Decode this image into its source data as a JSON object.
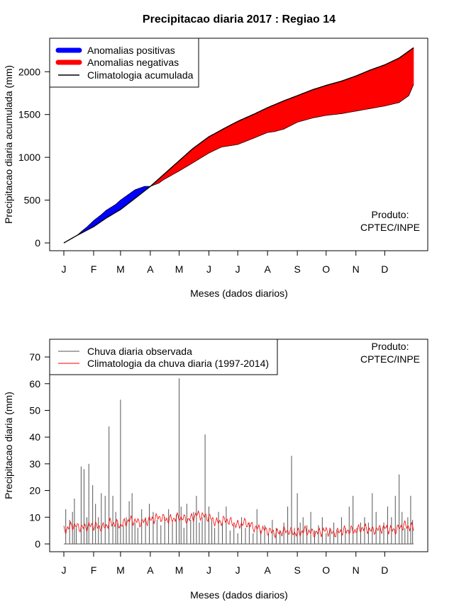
{
  "chart_data": [
    {
      "type": "area",
      "title": "Precipitacao diaria 2017 : Regiao 14",
      "xlabel": "Meses (dados diarios)",
      "ylabel": "Precipitacao diaria acumulada (mm)",
      "xlim": [
        1,
        365
      ],
      "ylim": [
        0,
        2300
      ],
      "yticks": [
        0,
        500,
        1000,
        1500,
        2000
      ],
      "months": [
        "J",
        "F",
        "M",
        "A",
        "M",
        "J",
        "J",
        "A",
        "S",
        "O",
        "N",
        "D"
      ],
      "month_days": [
        1,
        32,
        60,
        91,
        121,
        152,
        182,
        213,
        244,
        274,
        305,
        335
      ],
      "legend": {
        "placement": "top-left",
        "entries": [
          {
            "label": "Anomalias positivas",
            "color": "#0000ff",
            "kind": "thick"
          },
          {
            "label": "Anomalias negativas",
            "color": "#ff0000",
            "kind": "thick"
          },
          {
            "label": "Climatologia acumulada",
            "color": "#000000",
            "kind": "line"
          }
        ]
      },
      "annotation": [
        "Produto:",
        "CPTEC/INPE"
      ],
      "climatology_cumulative": {
        "days": [
          1,
          15,
          32,
          45,
          60,
          75,
          91,
          105,
          121,
          135,
          152,
          170,
          182,
          200,
          213,
          230,
          244,
          260,
          274,
          290,
          305,
          320,
          335,
          350,
          365
        ],
        "values": [
          0,
          90,
          190,
          290,
          390,
          520,
          660,
          800,
          960,
          1100,
          1240,
          1350,
          1420,
          1510,
          1580,
          1660,
          1720,
          1790,
          1840,
          1890,
          1950,
          2020,
          2080,
          2160,
          2280
        ]
      },
      "observed_cumulative": {
        "days": [
          1,
          15,
          20,
          25,
          32,
          40,
          45,
          55,
          60,
          70,
          75,
          85,
          91,
          100,
          105,
          121,
          130,
          152,
          165,
          182,
          200,
          213,
          220,
          230,
          244,
          260,
          274,
          290,
          305,
          320,
          335,
          350,
          360,
          365
        ],
        "values": [
          0,
          90,
          140,
          185,
          260,
          330,
          380,
          450,
          500,
          580,
          620,
          660,
          660,
          700,
          740,
          840,
          900,
          1050,
          1120,
          1150,
          1230,
          1290,
          1300,
          1330,
          1410,
          1460,
          1490,
          1510,
          1540,
          1570,
          1600,
          1640,
          1720,
          1850
        ]
      },
      "colors": {
        "positive": "#0000ff",
        "negative": "#ff0000",
        "line": "#000000"
      }
    },
    {
      "type": "bar",
      "xlabel": "Meses (dados diarios)",
      "ylabel": "Precipitacao diaria (mm)",
      "xlim": [
        1,
        365
      ],
      "ylim": [
        0,
        72
      ],
      "yticks": [
        0,
        10,
        20,
        30,
        40,
        50,
        60,
        70
      ],
      "months": [
        "J",
        "F",
        "M",
        "A",
        "M",
        "J",
        "J",
        "A",
        "S",
        "O",
        "N",
        "D"
      ],
      "month_days": [
        1,
        32,
        60,
        91,
        121,
        152,
        182,
        213,
        244,
        274,
        305,
        335
      ],
      "legend": {
        "placement": "top-left",
        "entries": [
          {
            "label": "Chuva diaria observada",
            "color": "#555555",
            "kind": "line"
          },
          {
            "label": "Climatologia da chuva diaria (1997-2014)",
            "color": "#ff0000",
            "kind": "line"
          }
        ]
      },
      "annotation": [
        "Produto:",
        "CPTEC/INPE"
      ],
      "colors": {
        "observed": "#555555",
        "climatology": "#ff0000"
      },
      "observed_daily": {
        "days": [
          3,
          7,
          10,
          12,
          14,
          19,
          22,
          25,
          27,
          31,
          34,
          37,
          40,
          44,
          48,
          52,
          55,
          57,
          60,
          63,
          66,
          69,
          72,
          75,
          78,
          82,
          86,
          90,
          94,
          98,
          102,
          106,
          110,
          114,
          118,
          121,
          123,
          126,
          129,
          133,
          136,
          139,
          142,
          145,
          148,
          152,
          155,
          158,
          162,
          166,
          170,
          174,
          178,
          182,
          186,
          190,
          194,
          198,
          202,
          206,
          210,
          214,
          218,
          222,
          226,
          230,
          234,
          238,
          241,
          244,
          247,
          250,
          254,
          258,
          262,
          266,
          270,
          274,
          278,
          282,
          286,
          290,
          294,
          298,
          302,
          306,
          310,
          314,
          318,
          322,
          326,
          330,
          334,
          338,
          342,
          346,
          350,
          353,
          356,
          359,
          362,
          364
        ],
        "values": [
          13,
          9,
          12,
          17,
          6,
          29,
          28,
          10,
          30,
          22,
          15,
          10,
          19,
          18,
          44,
          18,
          12,
          8,
          54,
          7,
          10,
          16,
          19,
          8,
          6,
          13,
          10,
          15,
          12,
          9,
          7,
          10,
          13,
          8,
          11,
          62,
          14,
          6,
          15,
          9,
          12,
          18,
          8,
          10,
          41,
          14,
          9,
          6,
          12,
          8,
          14,
          5,
          7,
          4,
          10,
          6,
          8,
          4,
          13,
          5,
          7,
          4,
          9,
          6,
          5,
          8,
          14,
          33,
          6,
          19,
          8,
          10,
          7,
          12,
          5,
          7,
          10,
          4,
          6,
          8,
          5,
          10,
          6,
          14,
          18,
          6,
          8,
          10,
          8,
          19,
          12,
          6,
          8,
          14,
          10,
          18,
          26,
          12,
          6,
          10,
          18,
          9
        ]
      },
      "climatology_daily": {
        "days": [
          1,
          10,
          20,
          31,
          41,
          50,
          60,
          70,
          80,
          91,
          100,
          110,
          121,
          130,
          140,
          152,
          160,
          170,
          182,
          190,
          200,
          213,
          222,
          232,
          244,
          252,
          262,
          274,
          282,
          292,
          305,
          312,
          322,
          335,
          345,
          355,
          365
        ],
        "values": [
          5,
          7,
          6,
          7,
          6,
          8,
          7,
          9,
          8,
          9,
          10,
          9,
          10,
          9,
          11,
          10,
          8,
          9,
          7,
          8,
          6,
          5,
          4,
          5,
          4,
          5,
          4,
          5,
          4,
          5,
          5,
          6,
          5,
          6,
          5,
          7,
          6
        ]
      }
    }
  ]
}
